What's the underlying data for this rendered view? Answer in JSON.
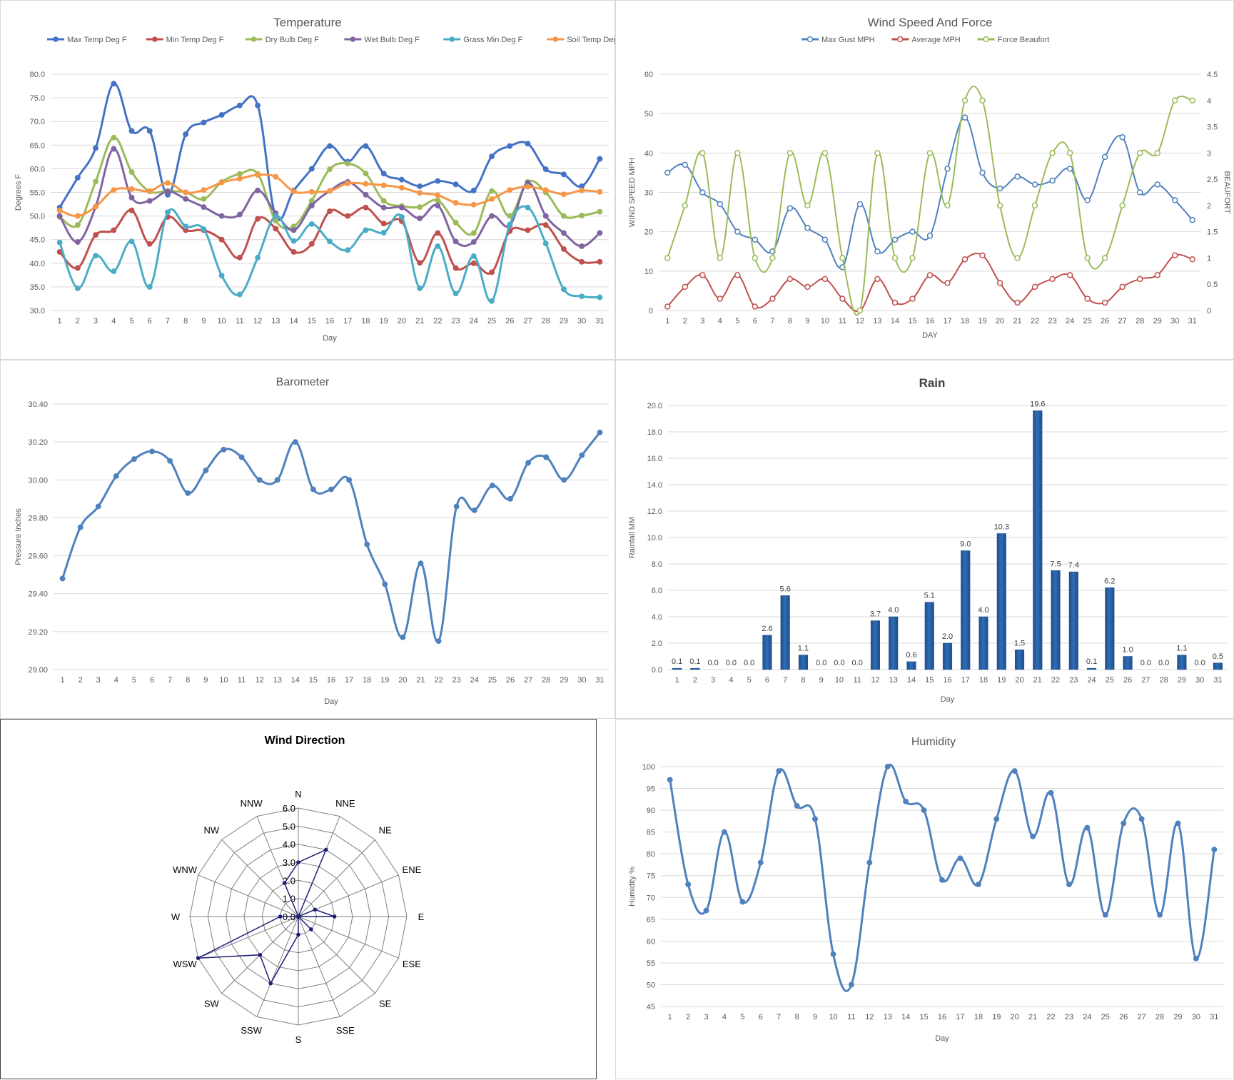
{
  "colors": {
    "max_temp": "#4472c4",
    "min_temp": "#c0504d",
    "dry_bulb": "#9bbb59",
    "wet_bulb": "#8064a2",
    "grass_min": "#4bacc6",
    "soil_temp": "#f79646",
    "wind_gust": "#4f81bd",
    "wind_avg": "#c0504d",
    "wind_force": "#9bbb59",
    "barometer": "#4f81bd",
    "rain_bar": "#2e6db4",
    "rain_bar_dark": "#1f4e8c",
    "radar": "#1f1f7a",
    "humidity": "#4f81bd",
    "grid": "#d9d9d9",
    "axis_text": "#595959"
  },
  "chart_data": [
    {
      "id": "temperature",
      "type": "line",
      "title": "Temperature",
      "xlabel": "Day",
      "ylabel": "Degrees F",
      "ylim": [
        30,
        80
      ],
      "yticks": [
        30,
        35,
        40,
        45,
        50,
        55,
        60,
        65,
        70,
        75,
        80
      ],
      "ytick_labels": [
        "30.0",
        "35.0",
        "40.0",
        "45.0",
        "50.0",
        "55.0",
        "60.0",
        "65.0",
        "70.0",
        "75.0",
        "80.0"
      ],
      "categories": [
        "1",
        "2",
        "3",
        "4",
        "5",
        "6",
        "7",
        "8",
        "9",
        "10",
        "11",
        "12",
        "13",
        "14",
        "15",
        "16",
        "17",
        "18",
        "19",
        "20",
        "21",
        "22",
        "23",
        "24",
        "25",
        "26",
        "27",
        "28",
        "29",
        "30",
        "31"
      ],
      "legend_position": "top",
      "grid": true,
      "series": [
        {
          "name": "Max Temp Deg F",
          "color_key": "max_temp",
          "values": [
            51.8,
            58.1,
            64.4,
            78.0,
            68.0,
            68.0,
            54.5,
            67.3,
            69.8,
            71.4,
            73.4,
            73.4,
            50.0,
            55.4,
            60.0,
            64.8,
            61.5,
            64.8,
            59.0,
            57.7,
            56.3,
            57.4,
            56.7,
            55.4,
            62.6,
            64.8,
            65.3,
            59.9,
            58.8,
            56.3,
            62.1
          ]
        },
        {
          "name": "Min Temp Deg F",
          "color_key": "min_temp",
          "values": [
            42.4,
            39.0,
            46.0,
            47.0,
            51.2,
            44.1,
            49.8,
            47.0,
            47.0,
            45.0,
            41.2,
            49.4,
            47.3,
            42.4,
            44.1,
            51.0,
            50.0,
            51.8,
            48.4,
            48.9,
            40.1,
            46.4,
            39.0,
            40.0,
            38.1,
            46.8,
            47.0,
            48.1,
            43.0,
            40.3,
            40.3
          ]
        },
        {
          "name": "Dry Bulb Deg F",
          "color_key": "dry_bulb",
          "values": [
            49.8,
            48.1,
            57.3,
            66.6,
            59.3,
            55.2,
            55.3,
            55.0,
            53.6,
            57.2,
            58.9,
            58.9,
            49.0,
            47.8,
            53.2,
            59.9,
            61.1,
            59.0,
            53.2,
            52.1,
            51.9,
            53.3,
            48.6,
            46.4,
            55.3,
            50.0,
            57.2,
            55.0,
            50.0,
            50.1,
            50.9
          ]
        },
        {
          "name": "Wet Bulb Deg F",
          "color_key": "wet_bulb",
          "values": [
            50.0,
            44.5,
            52.0,
            64.2,
            53.9,
            53.2,
            55.2,
            53.6,
            51.9,
            50.0,
            50.3,
            55.4,
            50.6,
            47.0,
            52.2,
            55.3,
            57.2,
            54.5,
            51.8,
            51.8,
            49.5,
            52.2,
            44.6,
            44.5,
            50.0,
            48.0,
            57.0,
            50.0,
            46.4,
            43.6,
            46.4
          ]
        },
        {
          "name": "Grass Min Deg F",
          "color_key": "grass_min",
          "values": [
            44.4,
            34.7,
            41.6,
            38.3,
            44.6,
            35.0,
            50.8,
            47.8,
            47.2,
            37.4,
            33.4,
            41.2,
            50.0,
            44.7,
            48.3,
            44.6,
            42.8,
            47.0,
            46.5,
            49.8,
            34.7,
            43.6,
            33.6,
            41.5,
            32.0,
            48.2,
            51.8,
            44.2,
            34.5,
            33.0,
            32.8
          ]
        },
        {
          "name": "Soil Temp Deg F",
          "color_key": "soil_temp",
          "values": [
            51.2,
            50.0,
            52.0,
            55.5,
            55.7,
            55.3,
            57.0,
            55.0,
            55.5,
            57.1,
            57.9,
            58.7,
            58.3,
            55.2,
            55.1,
            55.3,
            56.9,
            56.8,
            56.5,
            56.0,
            54.9,
            54.4,
            52.8,
            52.4,
            53.6,
            55.5,
            56.2,
            55.5,
            54.6,
            55.4,
            55.1
          ]
        }
      ]
    },
    {
      "id": "wind",
      "type": "line",
      "title": "Wind Speed And Force",
      "xlabel": "DAY",
      "ylabel": "WIND SPEED MPH",
      "y2label": "BEAUFORT",
      "ylim": [
        0,
        60
      ],
      "yticks": [
        0,
        10,
        20,
        30,
        40,
        50,
        60
      ],
      "ytick_labels": [
        "0",
        "10",
        "20",
        "30",
        "40",
        "50",
        "60"
      ],
      "y2lim": [
        0,
        4.5
      ],
      "y2ticks": [
        0,
        0.5,
        1,
        1.5,
        2,
        2.5,
        3,
        3.5,
        4,
        4.5
      ],
      "y2tick_labels": [
        "0",
        "0.5",
        "1",
        "1.5",
        "2",
        "2.5",
        "3",
        "3.5",
        "4",
        "4.5"
      ],
      "categories": [
        "1",
        "2",
        "3",
        "4",
        "5",
        "6",
        "7",
        "8",
        "9",
        "10",
        "11",
        "12",
        "13",
        "14",
        "15",
        "16",
        "17",
        "18",
        "19",
        "20",
        "21",
        "22",
        "23",
        "24",
        "25",
        "26",
        "27",
        "28",
        "29",
        "30",
        "31"
      ],
      "legend_position": "top",
      "grid": true,
      "series": [
        {
          "name": "Max Gust MPH",
          "axis": "left",
          "color_key": "wind_gust",
          "values": [
            35,
            37,
            30,
            27,
            20,
            18,
            15,
            26,
            21,
            18,
            11,
            27,
            15,
            18,
            20,
            19,
            36,
            49,
            35,
            31,
            34,
            32,
            33,
            36,
            28,
            39,
            44,
            30,
            32,
            28,
            23
          ]
        },
        {
          "name": "Average MPH",
          "axis": "left",
          "color_key": "wind_avg",
          "values": [
            1,
            6,
            9,
            3,
            9,
            1,
            3,
            8,
            6,
            8,
            3,
            0,
            8,
            2,
            3,
            9,
            7,
            13,
            14,
            7,
            2,
            6,
            8,
            9,
            3,
            2,
            6,
            8,
            9,
            14,
            13
          ]
        },
        {
          "name": "Force Beaufort",
          "axis": "right",
          "color_key": "wind_force",
          "values": [
            1,
            2,
            3,
            1,
            3,
            1,
            1,
            3,
            2,
            3,
            1,
            0,
            3,
            1,
            1,
            3,
            2,
            4,
            4,
            2,
            1,
            2,
            3,
            3,
            1,
            1,
            2,
            3,
            3,
            4,
            4
          ]
        }
      ]
    },
    {
      "id": "barometer",
      "type": "line",
      "title": "Barometer",
      "xlabel": "Day",
      "ylabel": "Pressure Inches",
      "ylim": [
        29.0,
        30.4
      ],
      "yticks": [
        29.0,
        29.2,
        29.4,
        29.6,
        29.8,
        30.0,
        30.2,
        30.4
      ],
      "ytick_labels": [
        "29.00",
        "29.20",
        "29.40",
        "29.60",
        "29.80",
        "30.00",
        "30.20",
        "30.40"
      ],
      "categories": [
        "1",
        "2",
        "3",
        "4",
        "5",
        "6",
        "7",
        "8",
        "9",
        "10",
        "11",
        "12",
        "13",
        "14",
        "15",
        "16",
        "17",
        "18",
        "19",
        "20",
        "21",
        "22",
        "23",
        "24",
        "25",
        "26",
        "27",
        "28",
        "29",
        "30",
        "31"
      ],
      "grid": true,
      "series": [
        {
          "name": "",
          "color_key": "barometer",
          "values": [
            29.48,
            29.75,
            29.86,
            30.02,
            30.11,
            30.15,
            30.1,
            29.93,
            30.05,
            30.16,
            30.12,
            30.0,
            30.0,
            30.2,
            29.95,
            29.95,
            30.0,
            29.66,
            29.45,
            29.17,
            29.56,
            29.15,
            29.86,
            29.84,
            29.97,
            29.9,
            30.09,
            30.12,
            30.0,
            30.13,
            30.25
          ]
        }
      ]
    },
    {
      "id": "rain",
      "type": "bar",
      "title": "Rain",
      "xlabel": "Day",
      "ylabel": "Rainfall MM",
      "ylim": [
        0,
        20
      ],
      "yticks": [
        0,
        2,
        4,
        6,
        8,
        10,
        12,
        14,
        16,
        18,
        20
      ],
      "ytick_labels": [
        "0.0",
        "2.0",
        "4.0",
        "6.0",
        "8.0",
        "10.0",
        "12.0",
        "14.0",
        "16.0",
        "18.0",
        "20.0"
      ],
      "categories": [
        "1",
        "2",
        "3",
        "4",
        "5",
        "6",
        "7",
        "8",
        "9",
        "10",
        "11",
        "12",
        "13",
        "14",
        "15",
        "16",
        "17",
        "18",
        "19",
        "20",
        "21",
        "22",
        "23",
        "24",
        "25",
        "26",
        "27",
        "28",
        "29",
        "30",
        "31"
      ],
      "grid": true,
      "values": [
        0.1,
        0.1,
        0.0,
        0.0,
        0.0,
        2.6,
        5.6,
        1.1,
        0.0,
        0.0,
        0.0,
        3.7,
        4.0,
        0.6,
        5.1,
        2.0,
        9.0,
        4.0,
        10.3,
        1.5,
        19.6,
        7.5,
        7.4,
        0.1,
        6.2,
        1.0,
        0.0,
        0.0,
        1.1,
        0.0,
        0.5
      ],
      "data_labels": [
        "0.1",
        "0.1",
        "0.0",
        "0.0",
        "0.0",
        "2.6",
        "5.6",
        "1.1",
        "0.0",
        "0.0",
        "0.0",
        "3.7",
        "4.0",
        "0.6",
        "5.1",
        "2.0",
        "9.0",
        "4.0",
        "10.3",
        "1.5",
        "19.6",
        "7.5",
        "7.4",
        "0.1",
        "6.2",
        "1.0",
        "0.0",
        "0.0",
        "1.1",
        "0.0",
        "0.5"
      ]
    },
    {
      "id": "wind_direction",
      "type": "radar",
      "title": "Wind Direction",
      "rlim": [
        0,
        6
      ],
      "rticks": [
        0,
        1,
        2,
        3,
        4,
        5,
        6
      ],
      "rtick_labels": [
        "0.0",
        "1.0",
        "2.0",
        "3.0",
        "4.0",
        "5.0",
        "6.0"
      ],
      "directions": [
        "N",
        "NNE",
        "NE",
        "ENE",
        "E",
        "ESE",
        "SE",
        "SSE",
        "S",
        "SSW",
        "SW",
        "WSW",
        "W",
        "WNW",
        "NW",
        "NNW"
      ],
      "values": [
        3,
        4,
        0,
        1,
        2,
        0,
        1,
        0,
        1,
        4,
        3,
        6,
        1,
        0,
        0,
        2
      ]
    },
    {
      "id": "humidity",
      "type": "line",
      "title": "Humidity",
      "xlabel": "Day",
      "ylabel": "Humidity %",
      "ylim": [
        45,
        100
      ],
      "yticks": [
        45,
        50,
        55,
        60,
        65,
        70,
        75,
        80,
        85,
        90,
        95,
        100
      ],
      "ytick_labels": [
        "45",
        "50",
        "55",
        "60",
        "65",
        "70",
        "75",
        "80",
        "85",
        "90",
        "95",
        "100"
      ],
      "categories": [
        "1",
        "2",
        "3",
        "4",
        "5",
        "6",
        "7",
        "8",
        "9",
        "10",
        "11",
        "12",
        "13",
        "14",
        "15",
        "16",
        "17",
        "18",
        "19",
        "20",
        "21",
        "22",
        "23",
        "24",
        "25",
        "26",
        "27",
        "28",
        "29",
        "30",
        "31"
      ],
      "grid": true,
      "series": [
        {
          "name": "",
          "color_key": "humidity",
          "values": [
            97,
            73,
            67,
            85,
            69,
            78,
            99,
            91,
            88,
            57,
            50,
            78,
            100,
            92,
            90,
            74,
            79,
            73,
            88,
            99,
            84,
            94,
            73,
            86,
            66,
            87,
            88,
            66,
            87,
            56,
            81
          ]
        }
      ]
    }
  ]
}
